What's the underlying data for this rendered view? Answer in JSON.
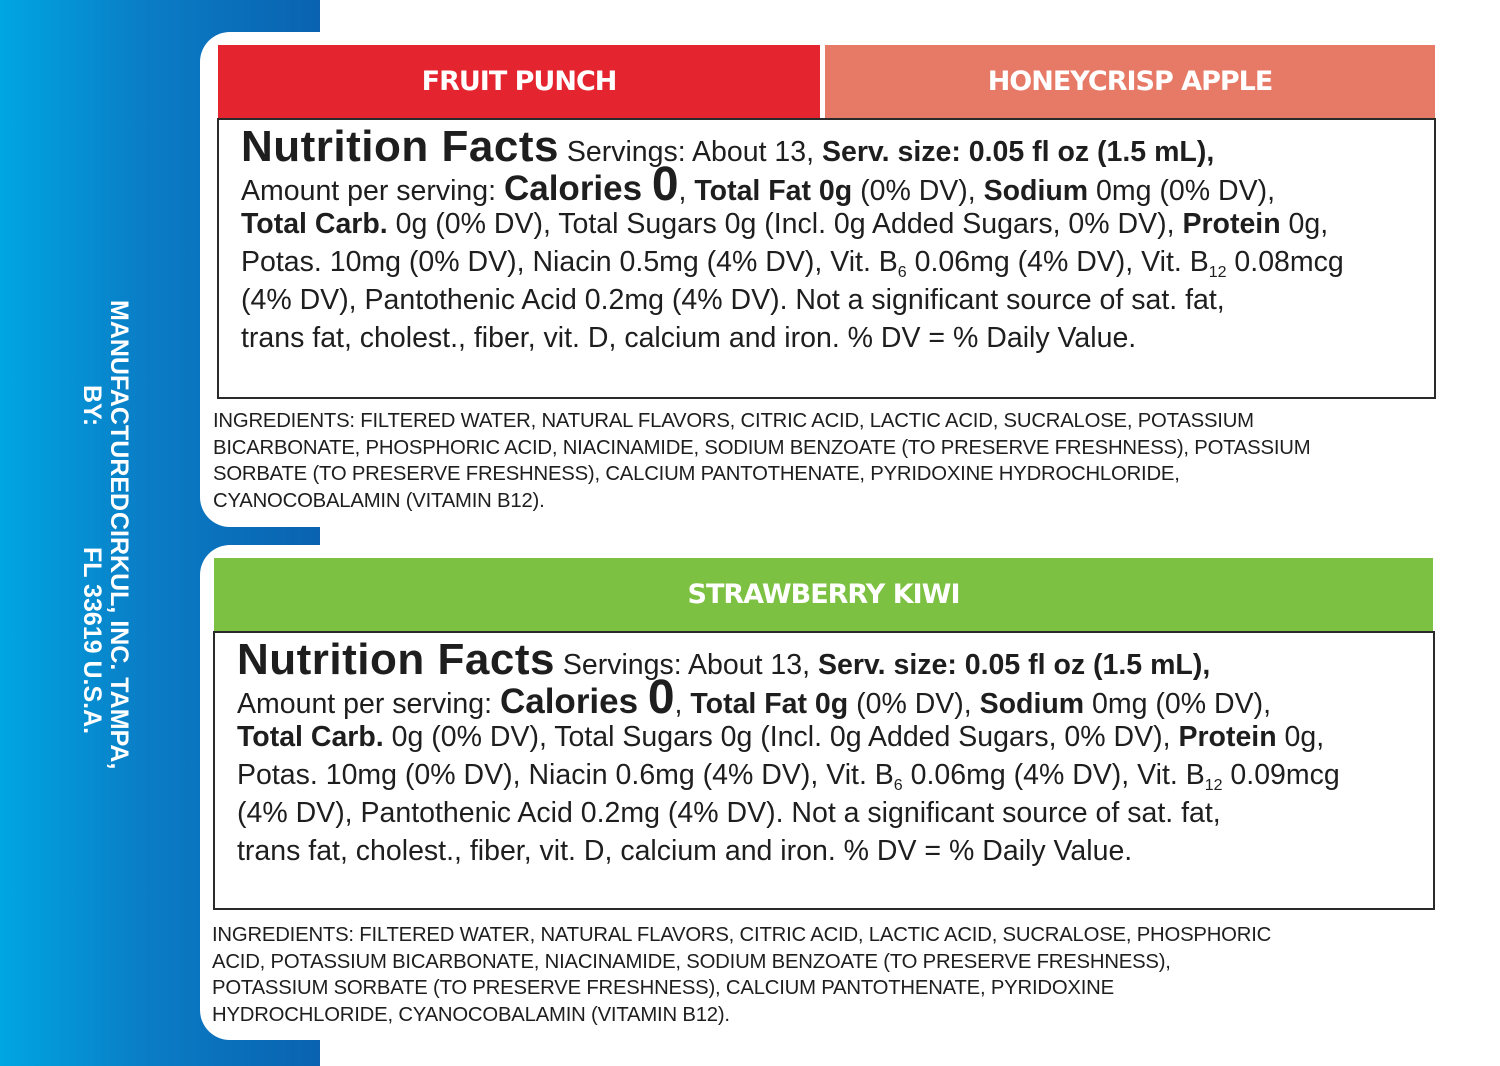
{
  "manufacturer": {
    "line1": "MANUFACTURED BY:",
    "line2": "CIRKUL, INC. TAMPA, FL 33619 U.S.A."
  },
  "colors": {
    "fruit_punch": "#e4252f",
    "honeycrisp_apple": "#e77a66",
    "strawberry_kiwi": "#7dc142",
    "side_bar": "#0a7dc6"
  },
  "panels": [
    {
      "flavors": [
        "FRUIT PUNCH",
        "HONEYCRISP APPLE"
      ],
      "facts": [
        [
          {
            "t": "Nutrition Facts",
            "c": "ttl"
          },
          {
            "t": " Servings: About 13, "
          },
          {
            "t": "Serv. size: 0.05 fl oz (1.5 mL),",
            "c": "b"
          }
        ],
        [
          {
            "t": "Amount per serving: "
          },
          {
            "t": "Calories ",
            "c": "cal"
          },
          {
            "t": "0",
            "c": "zero"
          },
          {
            "t": ", "
          },
          {
            "t": "Total Fat 0g",
            "c": "b"
          },
          {
            "t": " (0% DV), "
          },
          {
            "t": "Sodium",
            "c": "b"
          },
          {
            "t": " 0mg (0% DV),"
          }
        ],
        [
          {
            "t": "Total Carb.",
            "c": "b"
          },
          {
            "t": " 0g (0% DV), Total Sugars 0g (Incl. 0g Added Sugars, 0% DV), "
          },
          {
            "t": "Protein",
            "c": "b"
          },
          {
            "t": " 0g,"
          }
        ],
        [
          {
            "t": "Potas. 10mg (0% DV), Niacin 0.5mg (4% DV), Vit. B"
          },
          {
            "t": "6",
            "c": "sub"
          },
          {
            "t": " 0.06mg (4% DV), Vit. B"
          },
          {
            "t": "12",
            "c": "sub"
          },
          {
            "t": " 0.08mcg"
          }
        ],
        [
          {
            "t": "(4% DV), Pantothenic Acid 0.2mg (4% DV). Not a significant source of sat. fat,"
          }
        ],
        [
          {
            "t": "trans fat, cholest., fiber, vit. D, calcium and iron. % DV = % Daily Value."
          }
        ]
      ],
      "ingredients": [
        "INGREDIENTS: FILTERED WATER, NATURAL FLAVORS, CITRIC ACID, LACTIC ACID, SUCRALOSE, POTASSIUM",
        "BICARBONATE, PHOSPHORIC ACID, NIACINAMIDE, SODIUM BENZOATE (TO PRESERVE FRESHNESS), POTASSIUM",
        "SORBATE (TO PRESERVE FRESHNESS), CALCIUM PANTOTHENATE, PYRIDOXINE HYDROCHLORIDE,",
        "CYANOCOBALAMIN (VITAMIN B12)."
      ]
    },
    {
      "flavors": [
        "STRAWBERRY KIWI"
      ],
      "facts": [
        [
          {
            "t": "Nutrition Facts",
            "c": "ttl"
          },
          {
            "t": " Servings: About 13, "
          },
          {
            "t": "Serv. size: 0.05 fl oz (1.5 mL),",
            "c": "b"
          }
        ],
        [
          {
            "t": "Amount per serving: "
          },
          {
            "t": "Calories ",
            "c": "cal"
          },
          {
            "t": "0",
            "c": "zero"
          },
          {
            "t": ", "
          },
          {
            "t": "Total Fat 0g",
            "c": "b"
          },
          {
            "t": " (0% DV), "
          },
          {
            "t": "Sodium",
            "c": "b"
          },
          {
            "t": " 0mg (0% DV),"
          }
        ],
        [
          {
            "t": "Total Carb.",
            "c": "b"
          },
          {
            "t": " 0g (0% DV), Total Sugars 0g (Incl. 0g Added Sugars, 0% DV), "
          },
          {
            "t": "Protein",
            "c": "b"
          },
          {
            "t": " 0g,"
          }
        ],
        [
          {
            "t": "Potas. 10mg (0% DV), Niacin 0.6mg (4% DV), Vit. B"
          },
          {
            "t": "6",
            "c": "sub"
          },
          {
            "t": " 0.06mg (4% DV), Vit. B"
          },
          {
            "t": "12",
            "c": "sub"
          },
          {
            "t": " 0.09mcg"
          }
        ],
        [
          {
            "t": "(4% DV), Pantothenic Acid 0.2mg (4% DV). Not a significant source of sat. fat,"
          }
        ],
        [
          {
            "t": "trans fat, cholest., fiber, vit. D, calcium and iron. % DV = % Daily Value."
          }
        ]
      ],
      "ingredients": [
        "INGREDIENTS: FILTERED WATER, NATURAL FLAVORS, CITRIC ACID, LACTIC ACID, SUCRALOSE, PHOSPHORIC",
        "ACID, POTASSIUM BICARBONATE, NIACINAMIDE, SODIUM BENZOATE (TO PRESERVE FRESHNESS),",
        "POTASSIUM SORBATE (TO PRESERVE FRESHNESS), CALCIUM PANTOTHENATE, PYRIDOXINE",
        "HYDROCHLORIDE, CYANOCOBALAMIN (VITAMIN B12)."
      ]
    }
  ]
}
